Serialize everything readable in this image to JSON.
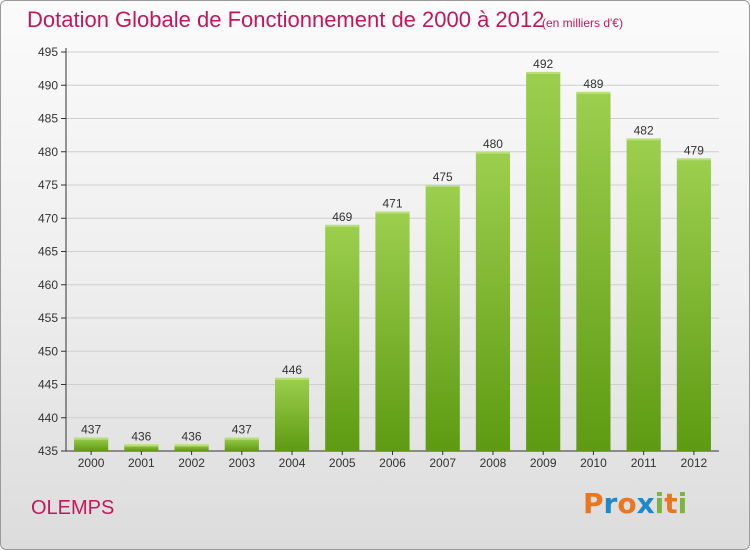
{
  "header": {
    "title": "Dotation Globale de Fonctionnement de 2000 à 2012",
    "subtitle": "(en milliers d'€)"
  },
  "footer": {
    "commune": "OLEMPS",
    "logo_text": "Proxiti",
    "logo_colors": [
      "#e87722",
      "#1e88c8",
      "#e87722",
      "#1e88c8",
      "#7cb342",
      "#e87722",
      "#7cb342"
    ]
  },
  "colors": {
    "title": "#c2185b",
    "bar_top": "#9ccf4e",
    "bar_bottom": "#5e9a12",
    "grid": "#cfcfcf",
    "axis": "#333333"
  },
  "chart_data": {
    "type": "bar",
    "title": "Dotation Globale de Fonctionnement de 2000 à 2012",
    "subtitle": "(en milliers d'€)",
    "categories": [
      "2000",
      "2001",
      "2002",
      "2003",
      "2004",
      "2005",
      "2006",
      "2007",
      "2008",
      "2009",
      "2010",
      "2011",
      "2012"
    ],
    "values": [
      437,
      436,
      436,
      437,
      446,
      469,
      471,
      475,
      480,
      492,
      489,
      482,
      479
    ],
    "ylim": [
      435,
      495
    ],
    "yticks": [
      435,
      440,
      445,
      450,
      455,
      460,
      465,
      470,
      475,
      480,
      485,
      490,
      495
    ],
    "xlabel": "",
    "ylabel": "",
    "grid": "horizontal",
    "data_labels": true
  }
}
